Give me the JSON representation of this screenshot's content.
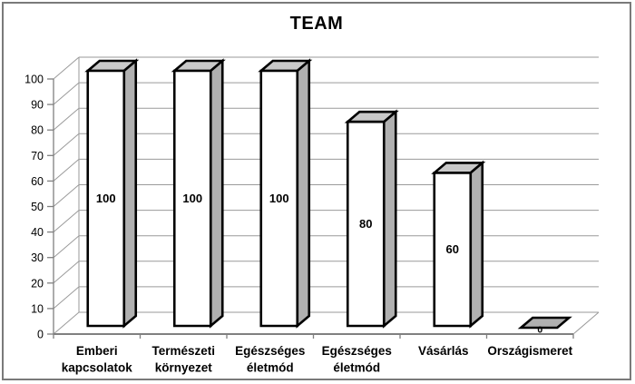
{
  "figure": {
    "title": "TEAM"
  },
  "chart_data": {
    "type": "bar",
    "projection": "3d",
    "title": "TEAM",
    "categories": [
      "Emberi kapcsolatok",
      "Természeti környezet",
      "Egészséges életmód",
      "Egészséges életmód",
      "Vásárlás",
      "Országismeret"
    ],
    "values": [
      100,
      100,
      100,
      80,
      60,
      0
    ],
    "data_labels": [
      "100",
      "100",
      "100",
      "80",
      "60",
      "0"
    ],
    "xlabel": "",
    "ylabel": "",
    "ylim": [
      0,
      100
    ],
    "ytick_step": 10,
    "ytick_labels": [
      "0",
      "10",
      "20",
      "30",
      "40",
      "50",
      "60",
      "70",
      "80",
      "90",
      "100"
    ],
    "grid": true,
    "legend": false,
    "colors": {
      "bar_front": "#ffffff",
      "bar_side": "#b0b0b0",
      "bar_top": "#c9c9c9",
      "bar_outline": "#000000",
      "gridline": "#9a9a9a",
      "axis": "#808080",
      "text": "#000000",
      "border": "#7a7a7a",
      "background": "#ffffff"
    }
  }
}
